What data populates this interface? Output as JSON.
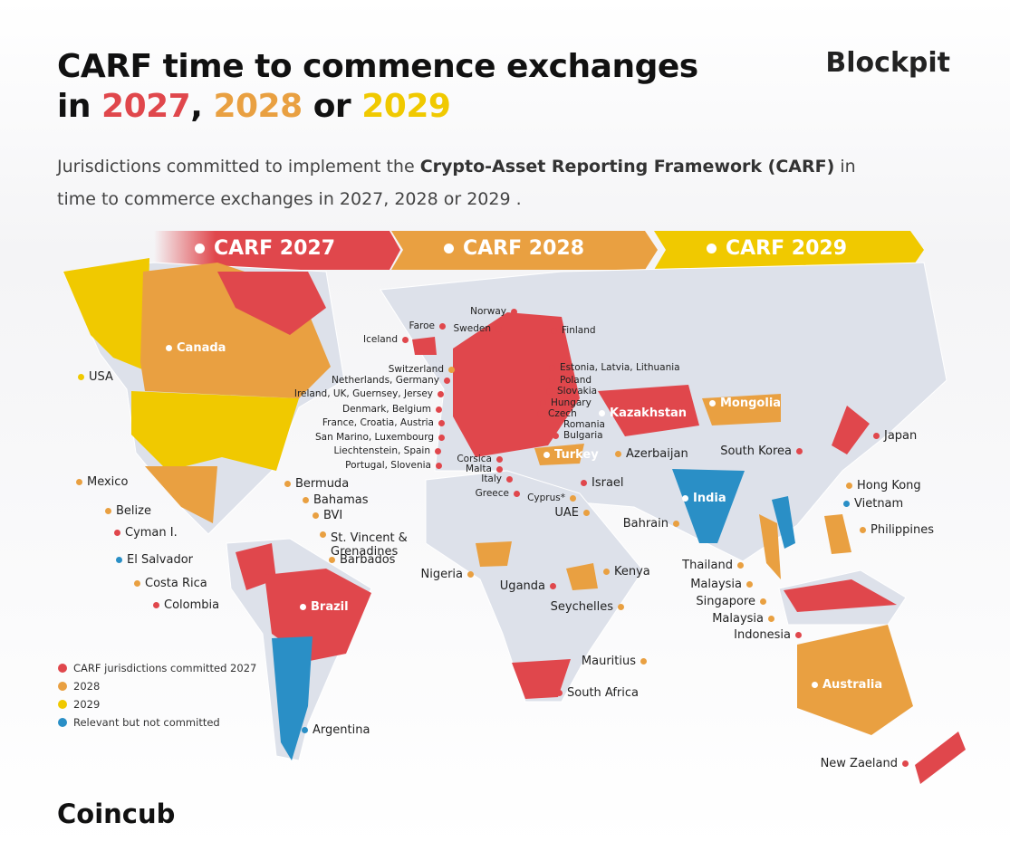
{
  "header": {
    "title_line1": "CARF time to commence exchanges",
    "title_in": "in",
    "title_2027": "2027",
    "title_comma": ",",
    "title_2028": "2028",
    "title_or": "or",
    "title_2029": "2029",
    "brand": "Blockpit"
  },
  "subtitle": {
    "lead": "Jurisdictions committed to implement the",
    "bold": "Crypto-Asset Reporting Framework (CARF)",
    "tail": "in time to commerce exchanges in 2027, 2028 or 2029 ."
  },
  "banners": [
    {
      "label": "CARF 2027",
      "color": "#e0474c"
    },
    {
      "label": "CARF 2028",
      "color": "#e9a041"
    },
    {
      "label": "CARF 2029",
      "color": "#f0c900"
    }
  ],
  "legend": [
    {
      "label": "CARF jurisdictions committed 2027",
      "color": "#e0474c",
      "jurisdictions": [
        "Norway",
        "Faroe",
        "Sweden",
        "Finland",
        "Iceland",
        "Estonia, Latvia, Lithuania",
        "Netherlands, Germany",
        "Poland",
        "Ireland, UK, Guernsey, Jersey",
        "Slovakia",
        "Hungary",
        "Denmark, Belgium",
        "Czech",
        "France, Croatia, Austria",
        "Romania",
        "San Marino, Luxembourg",
        "Bulgaria",
        "Liechtenstein, Spain",
        "Portugal, Slovenia",
        "Corsica",
        "Malta",
        "Italy",
        "Greece",
        "Israel",
        "Kazakhstan",
        "South Korea",
        "Japan",
        "Cyman I.",
        "Colombia",
        "Brazil",
        "Uganda",
        "South Africa",
        "Indonesia",
        "New Zaeland"
      ]
    },
    {
      "label": "2028",
      "color": "#e9a041",
      "jurisdictions": [
        "Canada",
        "Switzerland",
        "Turkey",
        "Cyprus*",
        "Azerbaijan",
        "Mongolia",
        "UAE",
        "Bahrain",
        "Hong Kong",
        "Philippines",
        "Thailand",
        "Malaysia",
        "Singapore",
        "Malaysia",
        "Australia",
        "Kenya",
        "Seychelles",
        "Mauritius",
        "Nigeria",
        "Mexico",
        "Belize",
        "Bermuda",
        "Bahamas",
        "BVI",
        "St. Vincent & Grenadines",
        "Barbados",
        "Costa Rica"
      ]
    },
    {
      "label": "2029",
      "color": "#f0c900",
      "jurisdictions": [
        "USA"
      ]
    },
    {
      "label": "Relevant but not committed",
      "color": "#2a8fc6",
      "jurisdictions": [
        "El Salvador",
        "Argentina",
        "India",
        "Vietnam"
      ]
    }
  ],
  "footer": "Coincub"
}
